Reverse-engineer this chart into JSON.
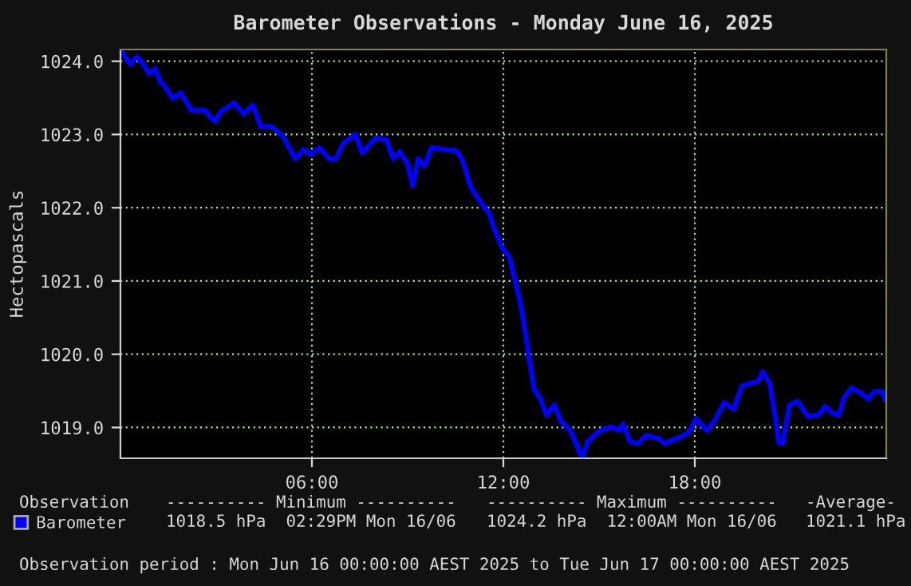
{
  "chart_data": {
    "type": "line",
    "title": "Barometer Observations - Monday June 16, 2025",
    "ylabel": "Hectopascals",
    "xlim": [
      0,
      24
    ],
    "xticks": [
      {
        "value": 6,
        "label": "06:00"
      },
      {
        "value": 12,
        "label": "12:00"
      },
      {
        "value": 18,
        "label": "18:00"
      }
    ],
    "ylim": [
      1018.58,
      1024.16
    ],
    "yticks": [
      {
        "value": 1019,
        "label": "1019.0"
      },
      {
        "value": 1020,
        "label": "1020.0"
      },
      {
        "value": 1021,
        "label": "1021.0"
      },
      {
        "value": 1022,
        "label": "1022.0"
      },
      {
        "value": 1023,
        "label": "1023.0"
      },
      {
        "value": 1024,
        "label": "1024.0"
      }
    ],
    "grid": true,
    "legend": "bottom left",
    "marker": "none",
    "line_style": "solid",
    "series": [
      {
        "name": "Barometer",
        "color": "#0000ff",
        "x": [
          0,
          0.3,
          0.52,
          0.72,
          0.89,
          1.09,
          1.22,
          1.42,
          1.64,
          1.89,
          2.22,
          2.64,
          2.81,
          2.98,
          3.14,
          3.56,
          3.86,
          4.15,
          4.4,
          4.73,
          5.07,
          5.48,
          5.74,
          5.99,
          6.24,
          6.54,
          6.74,
          6.99,
          7.36,
          7.58,
          8.0,
          8.33,
          8.55,
          8.75,
          9.0,
          9.16,
          9.33,
          9.53,
          9.75,
          10.25,
          10.52,
          10.72,
          10.97,
          11.3,
          11.55,
          11.72,
          11.97,
          12.18,
          12.47,
          12.63,
          12.8,
          12.97,
          13.18,
          13.35,
          13.6,
          13.8,
          14.13,
          14.47,
          14.63,
          14.97,
          15.38,
          15.63,
          15.75,
          15.97,
          16.22,
          16.47,
          16.88,
          17.05,
          17.55,
          17.8,
          18.05,
          18.38,
          18.63,
          18.92,
          19.22,
          19.47,
          19.72,
          19.97,
          20.13,
          20.35,
          20.52,
          20.63,
          20.75,
          20.97,
          21.22,
          21.55,
          21.88,
          22.08,
          22.3,
          22.52,
          22.68,
          22.92,
          23.22,
          23.43,
          23.63,
          23.88,
          23.97
        ],
        "values": [
          1024.16,
          1023.96,
          1024.06,
          1023.96,
          1023.83,
          1023.9,
          1023.75,
          1023.64,
          1023.49,
          1023.57,
          1023.33,
          1023.33,
          1023.24,
          1023.18,
          1023.31,
          1023.43,
          1023.28,
          1023.4,
          1023.11,
          1023.11,
          1022.99,
          1022.67,
          1022.79,
          1022.73,
          1022.82,
          1022.67,
          1022.66,
          1022.88,
          1023.0,
          1022.75,
          1022.95,
          1022.93,
          1022.67,
          1022.77,
          1022.6,
          1022.3,
          1022.67,
          1022.57,
          1022.82,
          1022.79,
          1022.78,
          1022.65,
          1022.29,
          1022.07,
          1021.93,
          1021.71,
          1021.45,
          1021.34,
          1020.83,
          1020.47,
          1019.96,
          1019.52,
          1019.38,
          1019.17,
          1019.31,
          1019.09,
          1018.94,
          1018.58,
          1018.8,
          1018.94,
          1019.01,
          1018.96,
          1019.05,
          1018.81,
          1018.78,
          1018.89,
          1018.85,
          1018.78,
          1018.87,
          1018.93,
          1019.12,
          1018.96,
          1019.1,
          1019.34,
          1019.25,
          1019.56,
          1019.6,
          1019.63,
          1019.76,
          1019.6,
          1019.16,
          1018.8,
          1018.78,
          1019.31,
          1019.36,
          1019.15,
          1019.17,
          1019.29,
          1019.2,
          1019.17,
          1019.41,
          1019.54,
          1019.47,
          1019.39,
          1019.49,
          1019.49,
          1019.38
        ]
      }
    ],
    "annotations": [
      "Observation",
      "---------- Minimum ----------",
      "---------- Maximum ----------",
      "-Average-",
      "1018.5 hPa  02:29PM Mon 16/06",
      "1024.2 hPa  12:00AM Mon 16/06",
      "1021.1 hPa",
      "Observation period : Mon Jun 16 00:00:00 AEST 2025 to Tue Jun 17 00:00:00 AEST 2025"
    ]
  }
}
